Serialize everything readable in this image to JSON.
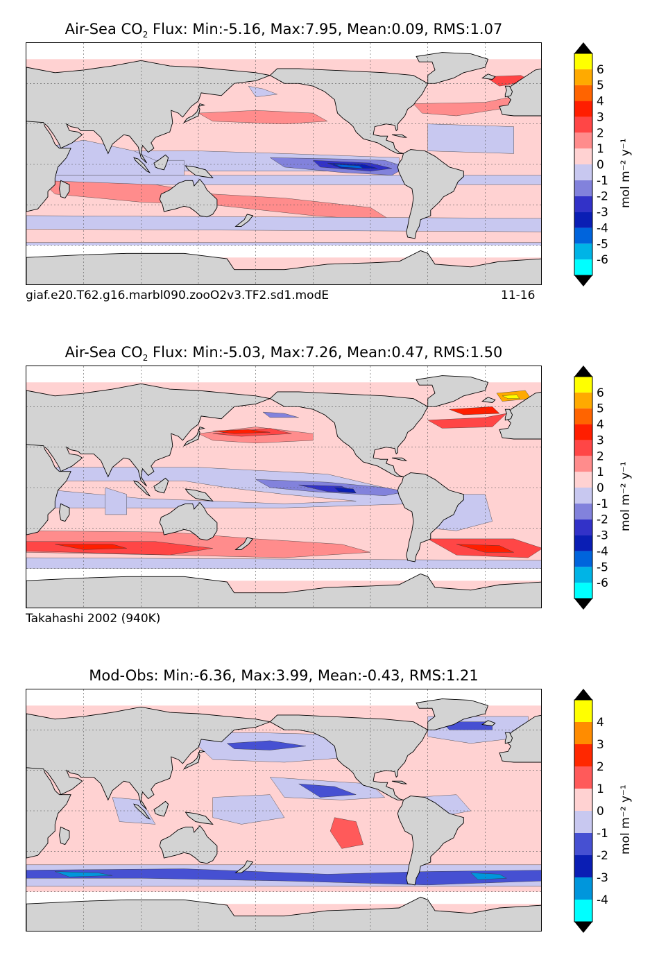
{
  "palette_main": [
    "#00ffff",
    "#00b4e6",
    "#0064dc",
    "#0a1eb4",
    "#3232c8",
    "#8282dc",
    "#c8c8f0",
    "#ffd2d2",
    "#ff8c8c",
    "#ff4646",
    "#ff1e00",
    "#ff6400",
    "#ffaa00",
    "#ffff00"
  ],
  "palette_diff": [
    "#00ffff",
    "#0096dc",
    "#0a1eb4",
    "#4650d2",
    "#c8c8f0",
    "#ffd2d2",
    "#ff5a5a",
    "#ff2800",
    "#ff8c00",
    "#ffff00"
  ],
  "colors": {
    "land": "#d3d3d3",
    "ocean_missing": "#ffffff"
  },
  "chart_data": [
    {
      "type": "heatmap",
      "title_prefix": "Air-Sea CO",
      "title_sub": "2",
      "title_suffix": " Flux: Min:-5.16, Max:7.95, Mean:0.09, RMS:1.07",
      "min": -5.16,
      "max": 7.95,
      "mean": 0.09,
      "rms": 1.07,
      "caption_left": "giaf.e20.T62.g16.marbl090.zooO2v3.TF2.sd1.modE",
      "caption_right": "11-16",
      "colorbar": {
        "ticks": [
          "6",
          "5",
          "4",
          "3",
          "2",
          "1",
          "0",
          "-1",
          "-2",
          "-3",
          "-4",
          "-5",
          "-6"
        ],
        "unit": "mol m⁻² y⁻¹",
        "levels": [
          -7,
          -6,
          -5,
          -4,
          -3,
          -2,
          -1,
          0,
          1,
          2,
          3,
          4,
          5,
          6,
          7
        ]
      },
      "variant": "model"
    },
    {
      "type": "heatmap",
      "title_prefix": "Air-Sea CO",
      "title_sub": "2",
      "title_suffix": " Flux: Min:-5.03, Max:7.26, Mean:0.47, RMS:1.50",
      "min": -5.03,
      "max": 7.26,
      "mean": 0.47,
      "rms": 1.5,
      "caption_left": "Takahashi 2002 (940K)",
      "caption_right": "",
      "colorbar": {
        "ticks": [
          "6",
          "5",
          "4",
          "3",
          "2",
          "1",
          "0",
          "-1",
          "-2",
          "-3",
          "-4",
          "-5",
          "-6"
        ],
        "unit": "mol m⁻² y⁻¹",
        "levels": [
          -7,
          -6,
          -5,
          -4,
          -3,
          -2,
          -1,
          0,
          1,
          2,
          3,
          4,
          5,
          6,
          7
        ]
      },
      "variant": "obs"
    },
    {
      "type": "heatmap",
      "title_prefix": "Mod-Obs: Min:-6.36, Max:3.99, Mean:-0.43, RMS:1.21",
      "title_sub": "",
      "title_suffix": "",
      "min": -6.36,
      "max": 3.99,
      "mean": -0.43,
      "rms": 1.21,
      "caption_left": "",
      "caption_right": "",
      "colorbar": {
        "ticks": [
          "4",
          "3",
          "2",
          "1",
          "0",
          "-1",
          "-2",
          "-3",
          "-4"
        ],
        "unit": "mol m⁻² y⁻¹",
        "levels": [
          -5,
          -4,
          -3,
          -2,
          -1,
          0,
          1,
          2,
          3,
          4,
          5
        ]
      },
      "variant": "diff"
    }
  ]
}
